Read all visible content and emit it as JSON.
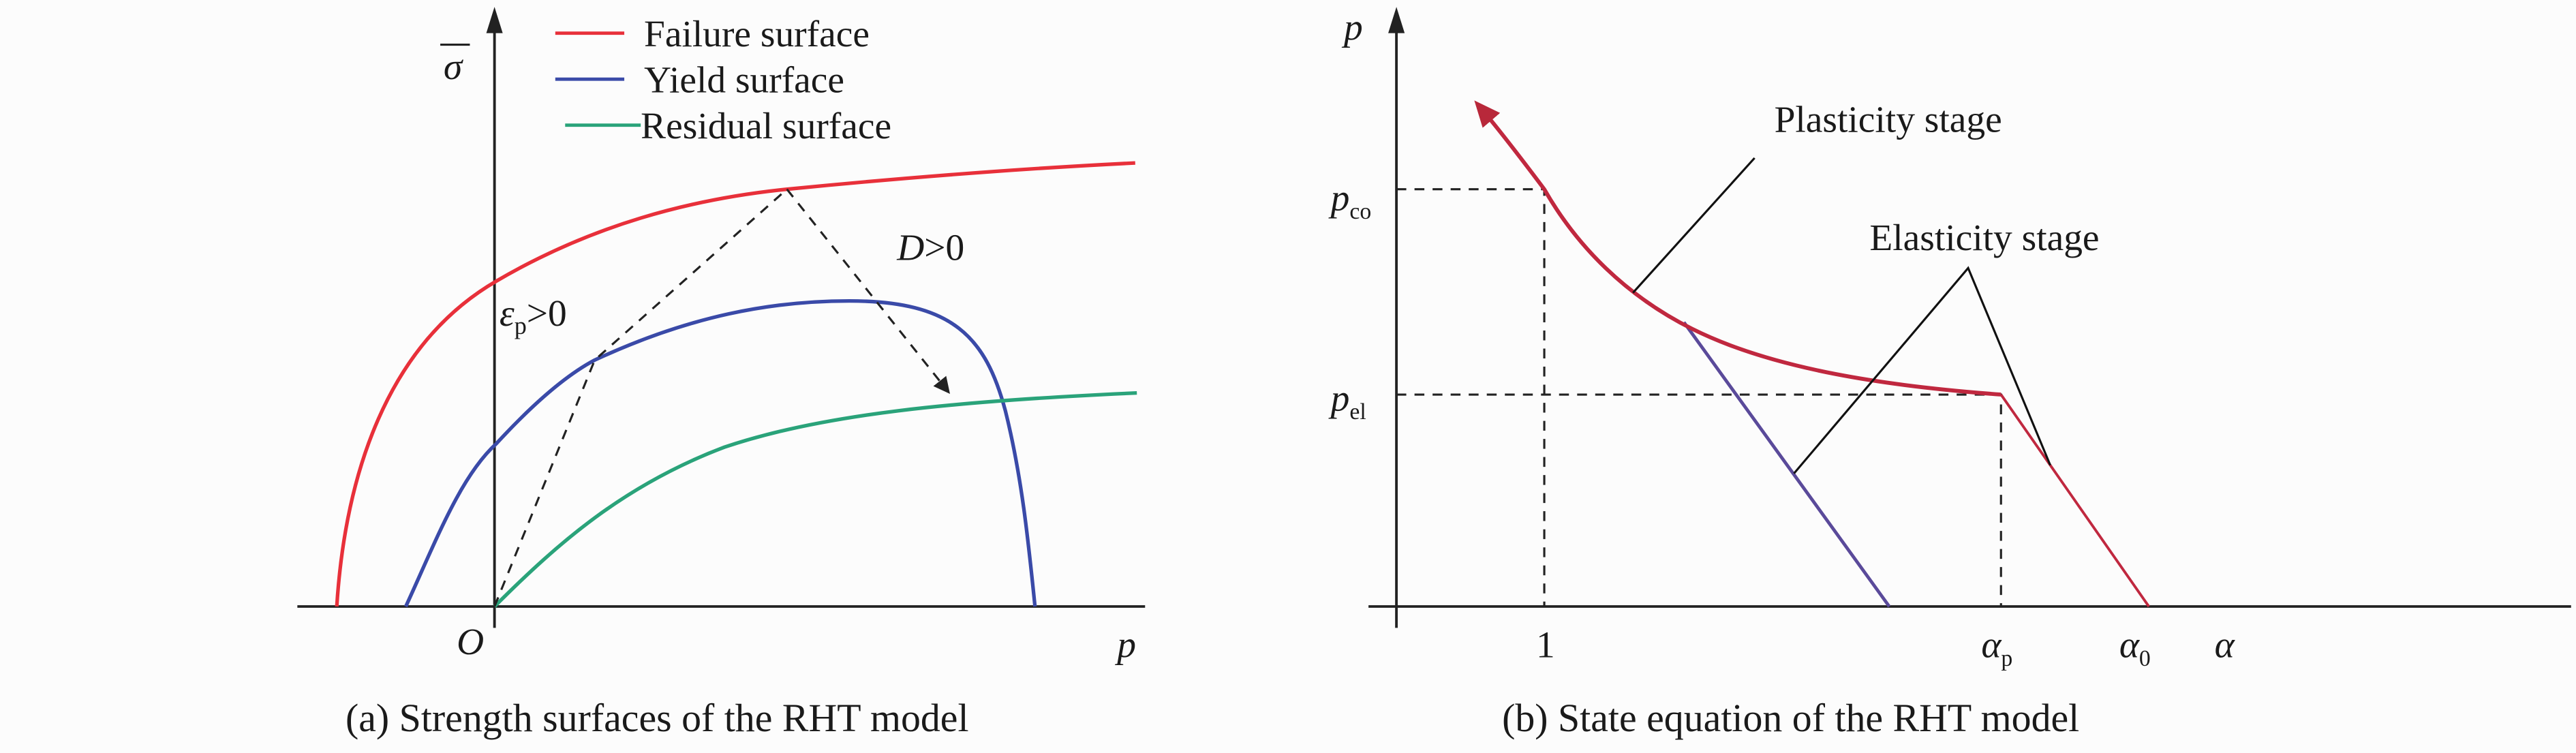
{
  "panel_a": {
    "caption": "(a) Strength surfaces of the RHT model",
    "y_axis_label": "σ",
    "x_axis_label": "p",
    "origin_label": "O",
    "legend": [
      {
        "label": "Failure surface",
        "color": "#e8303a"
      },
      {
        "label": "Yield surface",
        "color": "#3a4aa8"
      },
      {
        "label": "Residual surface",
        "color": "#2aa37a"
      }
    ],
    "annotation_plastic": {
      "symbol": "ε",
      "subscript": "p",
      "relation": ">0"
    },
    "annotation_damage": {
      "symbol": "D",
      "relation": ">0"
    }
  },
  "panel_b": {
    "caption": "(b) State equation of the RHT model",
    "y_axis_label": "p",
    "x_axis_label": "α",
    "y_ticks": [
      {
        "base": "p",
        "sub": "co"
      },
      {
        "base": "p",
        "sub": "el"
      }
    ],
    "x_ticks": [
      {
        "base": "1",
        "sub": ""
      },
      {
        "base": "α",
        "sub": "p"
      },
      {
        "base": "α",
        "sub": "0"
      }
    ],
    "plasticity_label": "Plasticity stage",
    "elasticity_label": "Elasticity stage",
    "curve_color": "#c0283f",
    "unloading_color": "#5a4a9a"
  }
}
